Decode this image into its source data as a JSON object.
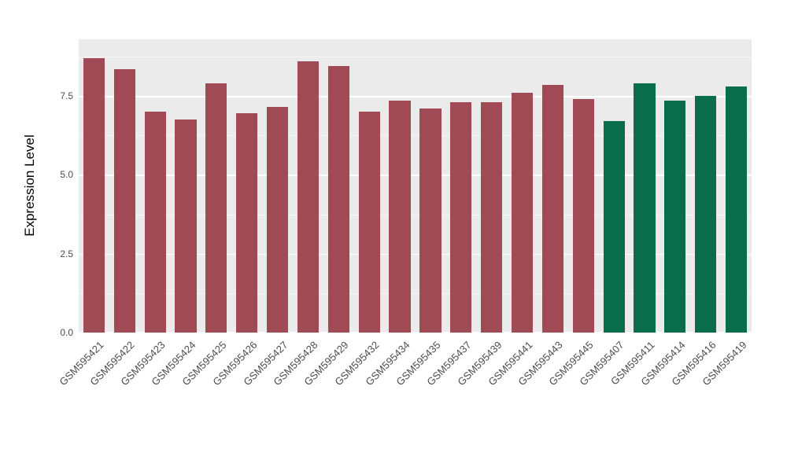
{
  "chart_data": {
    "type": "bar",
    "title": "",
    "xlabel": "",
    "ylabel": "Expression Level",
    "ylim": [
      0,
      9.3
    ],
    "yticks": [
      0,
      2.5,
      5,
      7.5
    ],
    "ytick_labels": [
      "0.0",
      "2.5",
      "5.0",
      "7.5"
    ],
    "grid": true,
    "legend_position": "none",
    "panel_background": "#EBEBEB",
    "grid_color": "#FFFFFF",
    "categories": [
      "GSM595421",
      "GSM595422",
      "GSM595423",
      "GSM595424",
      "GSM595425",
      "GSM595426",
      "GSM595427",
      "GSM595428",
      "GSM595429",
      "GSM595432",
      "GSM595434",
      "GSM595435",
      "GSM595437",
      "GSM595439",
      "GSM595441",
      "GSM595443",
      "GSM595445",
      "GSM595407",
      "GSM595411",
      "GSM595414",
      "GSM595416",
      "GSM595419"
    ],
    "values": [
      8.7,
      8.35,
      7.0,
      6.75,
      7.9,
      6.95,
      7.15,
      8.6,
      8.45,
      7.0,
      7.35,
      7.1,
      7.3,
      7.3,
      7.6,
      7.85,
      7.4,
      6.7,
      7.9,
      7.35,
      7.5,
      7.8
    ],
    "bar_groups": [
      0,
      0,
      0,
      0,
      0,
      0,
      0,
      0,
      0,
      0,
      0,
      0,
      0,
      0,
      0,
      0,
      0,
      1,
      1,
      1,
      1,
      1
    ],
    "group_colors": [
      "#A04A55",
      "#096C4B"
    ]
  }
}
